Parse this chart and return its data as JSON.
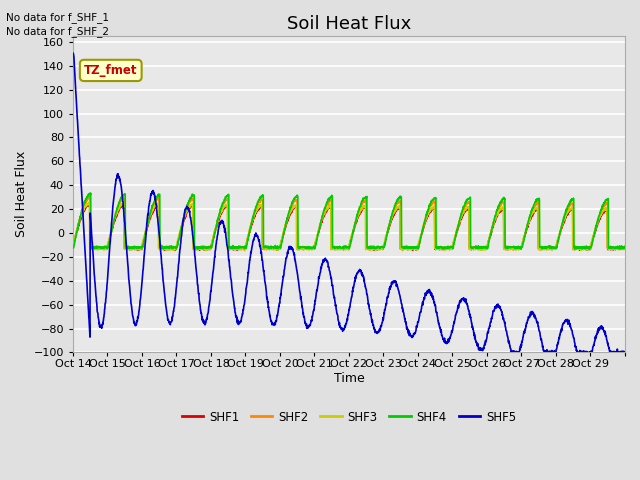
{
  "title": "Soil Heat Flux",
  "ylabel": "Soil Heat Flux",
  "xlabel": "Time",
  "annotations": [
    "No data for f_SHF_1",
    "No data for f_SHF_2"
  ],
  "label_box": "TZ_fmet",
  "x_tick_labels": [
    "Oct 14",
    "Oct 15",
    "Oct 16",
    "Oct 17",
    "Oct 18",
    "Oct 19",
    "Oct 20",
    "Oct 21",
    "Oct 22",
    "Oct 23",
    "Oct 24",
    "Oct 25",
    "Oct 26",
    "Oct 27",
    "Oct 28",
    "Oct 29"
  ],
  "x_tick_labels_short": [
    "Oct 14",
    "Oct 15",
    "Oct 16",
    "Oct 17",
    "Oct 18",
    "Oct 19",
    "Oct 20",
    "Oct 21",
    "Oct 22",
    "Oct 23",
    "Oct 24",
    "Oct 25",
    "Oct 26",
    "Oct 27",
    "Oct 28",
    "Oct 29"
  ],
  "ylim": [
    -100,
    165
  ],
  "yticks": [
    -100,
    -80,
    -60,
    -40,
    -20,
    0,
    20,
    40,
    60,
    80,
    100,
    120,
    140,
    160
  ],
  "series_colors": {
    "SHF1": "#dd0000",
    "SHF2": "#ff8800",
    "SHF3": "#cccc00",
    "SHF4": "#00cc00",
    "SHF5": "#0000cc"
  },
  "background_color": "#e0e0e0",
  "plot_bg_color": "#e8e8e8",
  "grid_color": "#ffffff",
  "title_fontsize": 13,
  "axis_fontsize": 9,
  "tick_fontsize": 8,
  "lw_shf1234": 1.2,
  "lw_shf5": 1.2
}
